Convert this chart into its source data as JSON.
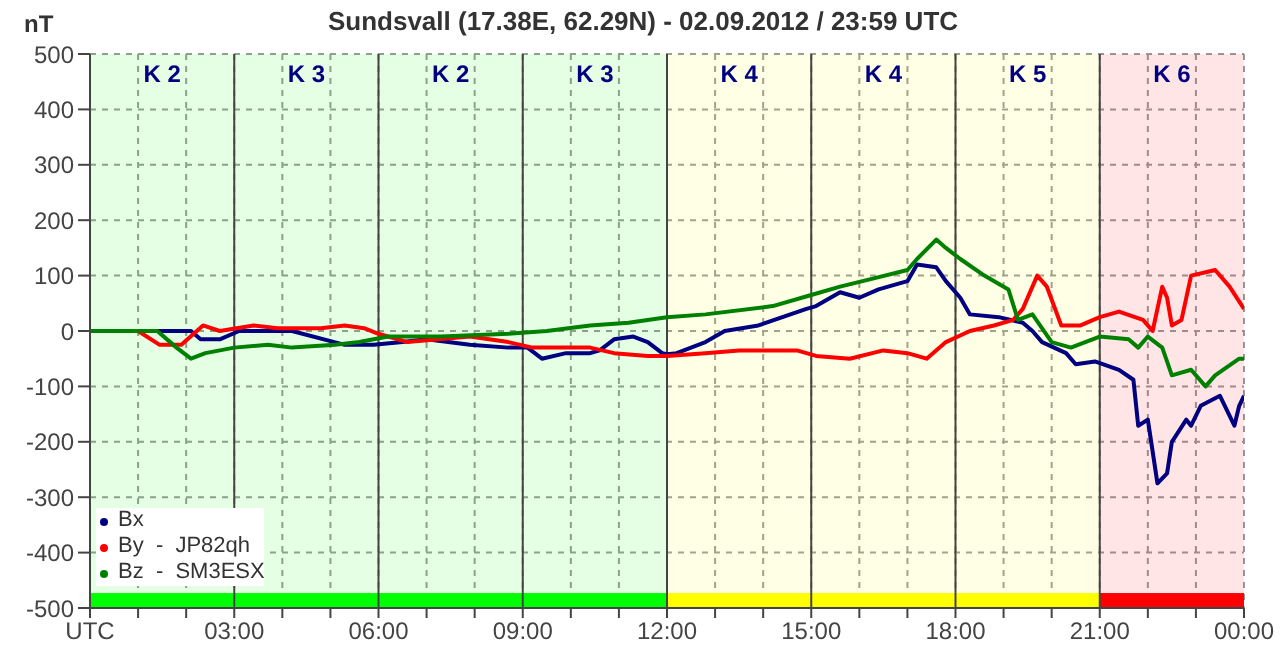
{
  "chart_data": {
    "type": "line",
    "title": "Sundsvall (17.38E, 62.29N) - 02.09.2012 / 23:59  UTC",
    "ylabel": "nT",
    "xlim": [
      0,
      24
    ],
    "ylim": [
      -500,
      500
    ],
    "xticks": [
      {
        "value": 0,
        "label": "UTC"
      },
      {
        "value": 1,
        "label": null
      },
      {
        "value": 2,
        "label": null
      },
      {
        "value": 3,
        "label": "03:00"
      },
      {
        "value": 4,
        "label": null
      },
      {
        "value": 5,
        "label": null
      },
      {
        "value": 6,
        "label": "06:00"
      },
      {
        "value": 7,
        "label": null
      },
      {
        "value": 8,
        "label": null
      },
      {
        "value": 9,
        "label": "09:00"
      },
      {
        "value": 10,
        "label": null
      },
      {
        "value": 11,
        "label": null
      },
      {
        "value": 12,
        "label": "12:00"
      },
      {
        "value": 13,
        "label": null
      },
      {
        "value": 14,
        "label": null
      },
      {
        "value": 15,
        "label": "15:00"
      },
      {
        "value": 16,
        "label": null
      },
      {
        "value": 17,
        "label": null
      },
      {
        "value": 18,
        "label": "18:00"
      },
      {
        "value": 19,
        "label": null
      },
      {
        "value": 20,
        "label": null
      },
      {
        "value": 21,
        "label": "21:00"
      },
      {
        "value": 22,
        "label": null
      },
      {
        "value": 23,
        "label": null
      },
      {
        "value": 24,
        "label": "00:00"
      }
    ],
    "yticks": [
      -500,
      -400,
      -300,
      -200,
      -100,
      0,
      100,
      200,
      300,
      400,
      500
    ],
    "grid": true,
    "legend": "bottom left",
    "marker": "none",
    "line_style": "solid",
    "series": [
      {
        "name": "Bx",
        "color": "#000080",
        "x": [
          0,
          1.4,
          2.1,
          2.3,
          2.7,
          3.1,
          4.2,
          5.3,
          5.9,
          6.5,
          7,
          7.9,
          8.7,
          9.1,
          9.4,
          9.9,
          10.4,
          10.6,
          10.9,
          11.3,
          11.6,
          11.9,
          12,
          12.2,
          12.8,
          13.2,
          13.9,
          14.9,
          15.1,
          15.6,
          16,
          16.4,
          17,
          17.2,
          17.6,
          17.8,
          18.1,
          18.3,
          18.9,
          19.4,
          19.6,
          19.8,
          20.3,
          20.5,
          20.9,
          21.4,
          21.7,
          21.8,
          22,
          22.2,
          22.4,
          22.5,
          22.8,
          22.9,
          23.1,
          23.5,
          23.8,
          23.9,
          24
        ],
        "values": [
          0,
          0,
          0,
          -15,
          -15,
          0,
          0,
          -25,
          -25,
          -20,
          -15,
          -25,
          -30,
          -30,
          -50,
          -40,
          -40,
          -35,
          -15,
          -10,
          -20,
          -40,
          -42,
          -40,
          -20,
          0,
          10,
          40,
          45,
          70,
          60,
          75,
          90,
          120,
          115,
          90,
          60,
          30,
          25,
          15,
          0,
          -20,
          -40,
          -60,
          -55,
          -70,
          -88,
          -171,
          -160,
          -275,
          -257,
          -200,
          -160,
          -171,
          -135,
          -117,
          -171,
          -135,
          -117
        ]
      },
      {
        "name": "By  -  JP82qh",
        "color": "#ff0000",
        "x": [
          0,
          1,
          1.45,
          1.9,
          2.35,
          2.7,
          3.4,
          3.9,
          4.8,
          5.3,
          5.7,
          6,
          6.6,
          7.9,
          8.7,
          9.2,
          10.4,
          10.9,
          11.6,
          12,
          12.8,
          13.5,
          14.7,
          15.1,
          15.8,
          16.5,
          17,
          17.4,
          17.8,
          18.3,
          18.8,
          19.2,
          19.4,
          19.7,
          19.9,
          20.2,
          20.6,
          21,
          21.4,
          21.9,
          22.1,
          22.3,
          22.4,
          22.5,
          22.7,
          22.9,
          23.4,
          23.7,
          24
        ],
        "values": [
          0,
          0,
          -25,
          -25,
          10,
          0,
          10,
          5,
          5,
          10,
          5,
          -5,
          -20,
          -10,
          -20,
          -30,
          -30,
          -40,
          -45,
          -45,
          -40,
          -35,
          -35,
          -45,
          -50,
          -35,
          -40,
          -50,
          -20,
          0,
          10,
          20,
          40,
          100,
          80,
          10,
          10,
          25,
          35,
          20,
          0,
          80,
          60,
          10,
          20,
          100,
          110,
          80,
          40
        ]
      },
      {
        "name": "Bz  -  SM3ESX",
        "color": "#008000",
        "x": [
          0,
          1.4,
          1.8,
          2.1,
          2.4,
          3,
          3.7,
          4.2,
          5.1,
          5.6,
          6.2,
          7.3,
          8.7,
          9.5,
          10.4,
          11.2,
          12,
          12.8,
          14.2,
          15,
          15.6,
          16.3,
          17,
          17.2,
          17.6,
          17.8,
          18.1,
          18.6,
          19.1,
          19.3,
          19.6,
          20,
          20.4,
          21,
          21.6,
          21.8,
          22,
          22.3,
          22.5,
          22.9,
          23.2,
          23.4,
          23.9,
          24
        ],
        "values": [
          0,
          0,
          -30,
          -50,
          -40,
          -30,
          -25,
          -30,
          -25,
          -20,
          -10,
          -10,
          -5,
          0,
          10,
          15,
          25,
          30,
          45,
          65,
          80,
          95,
          110,
          130,
          165,
          150,
          130,
          100,
          75,
          20,
          30,
          -20,
          -30,
          -10,
          -15,
          -30,
          -10,
          -30,
          -80,
          -70,
          -100,
          -80,
          -50,
          -50
        ]
      }
    ],
    "annotations": [
      "K 2",
      "K 3",
      "K 2",
      "K 3",
      "K 4",
      "K 4",
      "K 5",
      "K 6"
    ],
    "bands": [
      {
        "axis": "x",
        "from": 0,
        "to": 12,
        "color": "#00ff00"
      },
      {
        "axis": "x",
        "from": 12,
        "to": 21,
        "color": "#ffff00"
      },
      {
        "axis": "x",
        "from": 21,
        "to": 24,
        "color": "#ff0000"
      }
    ]
  }
}
